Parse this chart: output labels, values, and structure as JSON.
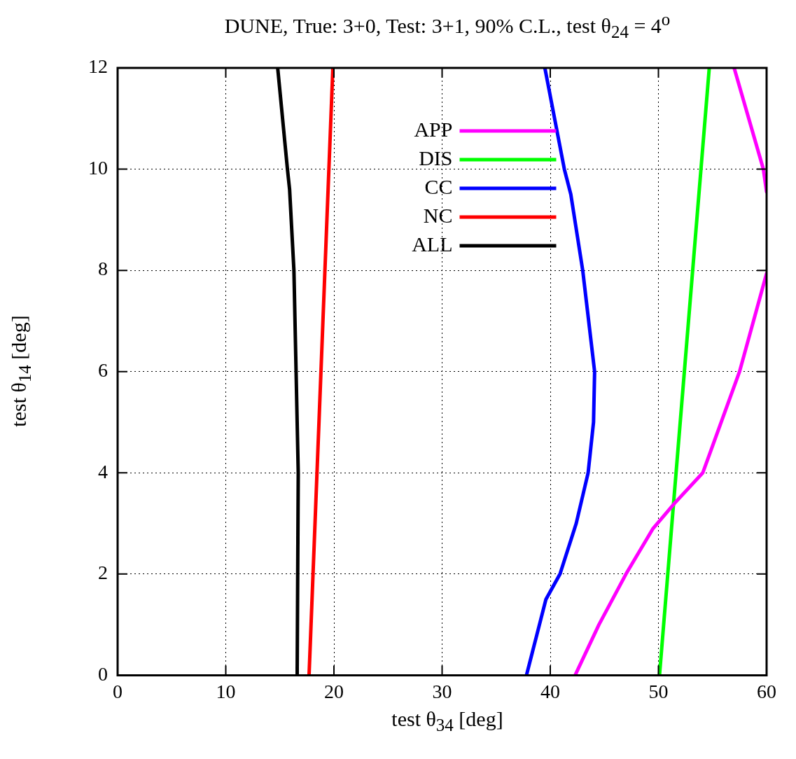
{
  "chart_data": {
    "type": "line",
    "title": "DUNE, True: 3+0, Test: 3+1, 90% C.L., test θ$_{24}$ = 4$^{o}$",
    "xlabel": "test θ$_{34}$ [deg]",
    "ylabel": "test θ$_{14}$ [deg]",
    "xlim": [
      0,
      60
    ],
    "xticks": [
      0,
      10,
      20,
      30,
      40,
      50,
      60
    ],
    "ylim": [
      0,
      12
    ],
    "yticks": [
      0,
      2,
      4,
      6,
      8,
      10,
      12
    ],
    "grid": true,
    "legend": "top",
    "marker": "none",
    "line_style": "solid",
    "series": [
      {
        "name": "APP",
        "color": "#ff00ff",
        "x": [
          42.3,
          44.5,
          47,
          49.5,
          51.5,
          54.1,
          57.5,
          60,
          null,
          57,
          59.7,
          60
        ],
        "values": [
          0,
          1,
          2,
          2.9,
          3.4,
          4,
          6,
          7.94,
          null,
          12,
          10,
          9.55
        ]
      },
      {
        "name": "DIS",
        "color": "#00ff00",
        "x": [
          50.1,
          51.4,
          54.7
        ],
        "values": [
          0,
          3.4,
          12
        ]
      },
      {
        "name": "CC",
        "color": "#0000ff",
        "x": [
          37.8,
          39.6,
          40.9,
          42.4,
          43.5,
          44,
          44.1,
          43.0,
          41.9,
          41.3,
          39.5
        ],
        "values": [
          0,
          1.5,
          2,
          3,
          4,
          5,
          6,
          8,
          9.5,
          10,
          12
        ]
      },
      {
        "name": "NC",
        "color": "#ff0000",
        "x": [
          17.7,
          19.9
        ],
        "values": [
          0,
          12
        ]
      },
      {
        "name": "ALL",
        "color": "#000000",
        "x": [
          16.6,
          16.7,
          16.5,
          16.3,
          15.9,
          15.7,
          14.8
        ],
        "values": [
          0,
          4,
          6,
          8,
          9.6,
          10,
          12
        ]
      }
    ]
  }
}
